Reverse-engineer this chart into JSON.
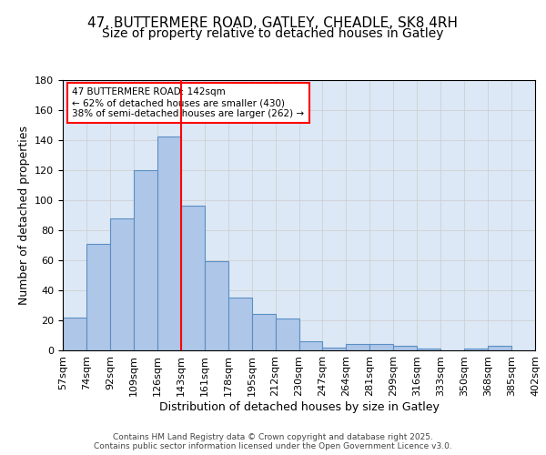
{
  "title_line1": "47, BUTTERMERE ROAD, GATLEY, CHEADLE, SK8 4RH",
  "title_line2": "Size of property relative to detached houses in Gatley",
  "xlabel": "Distribution of detached houses by size in Gatley",
  "ylabel": "Number of detached properties",
  "bin_labels": [
    "57sqm",
    "74sqm",
    "92sqm",
    "109sqm",
    "126sqm",
    "143sqm",
    "161sqm",
    "178sqm",
    "195sqm",
    "212sqm",
    "230sqm",
    "247sqm",
    "264sqm",
    "281sqm",
    "299sqm",
    "316sqm",
    "333sqm",
    "350sqm",
    "368sqm",
    "385sqm",
    "402sqm"
  ],
  "bin_values": [
    22,
    71,
    88,
    120,
    142,
    96,
    59,
    35,
    24,
    21,
    6,
    2,
    4,
    4,
    3,
    1,
    0,
    1,
    3,
    0
  ],
  "bar_color": "#aec6e8",
  "bar_edge_color": "#5a8fc4",
  "annotation_text": "47 BUTTERMERE ROAD: 142sqm\n← 62% of detached houses are smaller (430)\n38% of semi-detached houses are larger (262) →",
  "vline_color": "red",
  "vline_x": 4.5,
  "ylim": [
    0,
    180
  ],
  "yticks": [
    0,
    20,
    40,
    60,
    80,
    100,
    120,
    140,
    160,
    180
  ],
  "grid_color": "#cccccc",
  "bg_color": "#dce8f5",
  "footer_text": "Contains HM Land Registry data © Crown copyright and database right 2025.\nContains public sector information licensed under the Open Government Licence v3.0.",
  "title_fontsize": 11,
  "subtitle_fontsize": 10,
  "tick_fontsize": 8,
  "label_fontsize": 9,
  "annotation_fontsize": 7.5
}
